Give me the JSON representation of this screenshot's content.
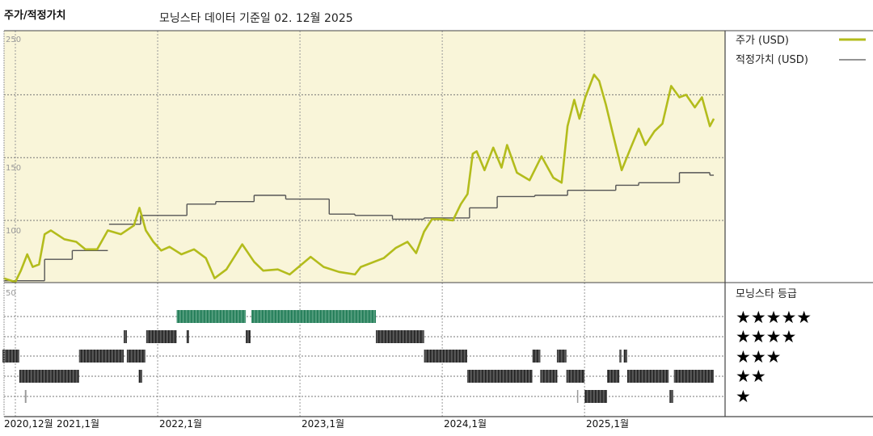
{
  "header": {
    "title": "주가/적정가치",
    "subtitle": "모닝스타 데이터 기준일 02. 12월 2025"
  },
  "legend": {
    "price_label": "주가 (USD)",
    "fair_value_label": "적정가치 (USD)",
    "rating_title": "모닝스타 등급",
    "stars": [
      "★★★★★",
      "★★★★",
      "★★★",
      "★★",
      "★"
    ]
  },
  "colors": {
    "price": "#b3bc1c",
    "fair_value": "#555555",
    "plot_bg": "#f9f5d9",
    "rating_5": "#2f8a66",
    "rating_other": "#333333"
  },
  "chart_data": [
    {
      "type": "line",
      "ylim": [
        50,
        250
      ],
      "yticks": [
        "250",
        "150",
        "100",
        "50"
      ],
      "grid": true,
      "legend": "right",
      "xticks": [
        "2020,12월",
        "2021,1월",
        "2022,1월",
        "2023,1월",
        "2024,1월",
        "2025,1월"
      ],
      "series": [
        {
          "name": "주가 (USD)",
          "points": [
            [
              "2020-12-01",
              54
            ],
            [
              "2021-01-01",
              51
            ],
            [
              "2021-01-15",
              60
            ],
            [
              "2021-02-01",
              73
            ],
            [
              "2021-02-15",
              63
            ],
            [
              "2021-03-01",
              65
            ],
            [
              "2021-03-15",
              89
            ],
            [
              "2021-04-01",
              92
            ],
            [
              "2021-05-05",
              85
            ],
            [
              "2021-06-05",
              83
            ],
            [
              "2021-06-28",
              77
            ],
            [
              "2021-07-28",
              77
            ],
            [
              "2021-08-25",
              92
            ],
            [
              "2021-09-28",
              89
            ],
            [
              "2021-11-01",
              96
            ],
            [
              "2021-11-15",
              110
            ],
            [
              "2021-12-01",
              92
            ],
            [
              "2021-12-20",
              83
            ],
            [
              "2022-01-10",
              76
            ],
            [
              "2022-02-01",
              79
            ],
            [
              "2022-03-01",
              73
            ],
            [
              "2022-04-03",
              77
            ],
            [
              "2022-05-03",
              70
            ],
            [
              "2022-05-25",
              54
            ],
            [
              "2022-06-25",
              61
            ],
            [
              "2022-08-05",
              81
            ],
            [
              "2022-09-05",
              67
            ],
            [
              "2022-09-28",
              60
            ],
            [
              "2022-11-05",
              61
            ],
            [
              "2022-12-05",
              57
            ],
            [
              "2023-01-28",
              71
            ],
            [
              "2023-03-01",
              63
            ],
            [
              "2023-04-10",
              59
            ],
            [
              "2023-05-20",
              57
            ],
            [
              "2023-06-05",
              63
            ],
            [
              "2023-08-03",
              70
            ],
            [
              "2023-09-03",
              78
            ],
            [
              "2023-10-03",
              83
            ],
            [
              "2023-10-25",
              74
            ],
            [
              "2023-11-15",
              91
            ],
            [
              "2023-12-05",
              101
            ],
            [
              "2023-12-28",
              101
            ],
            [
              "2024-01-28",
              100
            ],
            [
              "2024-02-18",
              113
            ],
            [
              "2024-03-05",
              121
            ],
            [
              "2024-03-18",
              153
            ],
            [
              "2024-03-28",
              155
            ],
            [
              "2024-04-18",
              140
            ],
            [
              "2024-05-10",
              158
            ],
            [
              "2024-06-01",
              142
            ],
            [
              "2024-06-15",
              160
            ],
            [
              "2024-07-10",
              138
            ],
            [
              "2024-08-12",
              132
            ],
            [
              "2024-09-12",
              151
            ],
            [
              "2024-10-12",
              134
            ],
            [
              "2024-11-03",
              130
            ],
            [
              "2024-11-18",
              175
            ],
            [
              "2024-12-05",
              196
            ],
            [
              "2024-12-18",
              181
            ],
            [
              "2025-01-03",
              198
            ],
            [
              "2025-01-25",
              216
            ],
            [
              "2025-02-08",
              211
            ],
            [
              "2025-02-25",
              192
            ],
            [
              "2025-03-15",
              166
            ],
            [
              "2025-04-05",
              140
            ],
            [
              "2025-04-28",
              158
            ],
            [
              "2025-05-18",
              173
            ],
            [
              "2025-06-05",
              160
            ],
            [
              "2025-06-28",
              171
            ],
            [
              "2025-07-18",
              177
            ],
            [
              "2025-08-10",
              207
            ],
            [
              "2025-09-01",
              198
            ],
            [
              "2025-09-18",
              200
            ],
            [
              "2025-10-10",
              190
            ],
            [
              "2025-10-28",
              198
            ],
            [
              "2025-11-18",
              175
            ],
            [
              "2025-11-28",
              181
            ]
          ]
        },
        {
          "name": "적정가치 (USD)",
          "steps": [
            [
              "2020-12-01",
              52
            ],
            [
              "2021-03-15",
              69
            ],
            [
              "2021-05-25",
              76
            ],
            [
              "2021-08-25",
              null
            ],
            [
              "2021-08-28",
              97
            ],
            [
              "2021-11-18",
              104
            ],
            [
              "2022-03-15",
              113
            ],
            [
              "2022-05-28",
              115
            ],
            [
              "2022-09-05",
              120
            ],
            [
              "2022-11-25",
              117
            ],
            [
              "2023-03-15",
              105
            ],
            [
              "2023-05-20",
              104
            ],
            [
              "2023-08-25",
              101
            ],
            [
              "2023-11-15",
              102
            ],
            [
              "2024-03-10",
              110
            ],
            [
              "2024-05-20",
              119
            ],
            [
              "2024-08-25",
              120
            ],
            [
              "2024-11-18",
              124
            ],
            [
              "2025-03-20",
              128
            ],
            [
              "2025-05-18",
              130
            ],
            [
              "2025-09-01",
              138
            ],
            [
              "2025-11-18",
              136
            ],
            [
              "2025-11-28",
              136
            ]
          ]
        }
      ]
    },
    {
      "type": "bar",
      "title": "모닝스타 등급",
      "ratings": [
        {
          "stars": 5,
          "ranges": [
            [
              "2022-02-19",
              "2022-08-14"
            ],
            [
              "2022-08-28",
              "2023-07-13"
            ]
          ]
        },
        {
          "stars": 4,
          "ranges": [
            [
              "2021-10-05",
              "2021-10-13"
            ],
            [
              "2021-12-02",
              "2022-02-19"
            ],
            [
              "2022-03-14",
              "2022-03-20"
            ],
            [
              "2022-08-14",
              "2022-08-26"
            ],
            [
              "2023-07-13",
              "2023-11-15"
            ]
          ]
        },
        {
          "stars": 3,
          "ranges": [
            [
              "2020-11-28",
              "2021-01-11"
            ],
            [
              "2021-06-12",
              "2021-10-05"
            ],
            [
              "2021-10-13",
              "2021-11-30"
            ],
            [
              "2023-11-15",
              "2024-03-04"
            ],
            [
              "2024-08-19",
              "2024-09-09"
            ],
            [
              "2024-10-21",
              "2024-11-15"
            ],
            [
              "2025-03-29",
              "2025-04-04"
            ],
            [
              "2025-04-10",
              "2025-04-19"
            ]
          ]
        },
        {
          "stars": 2,
          "ranges": [
            [
              "2021-01-11",
              "2021-06-12"
            ],
            [
              "2021-11-13",
              "2021-11-22"
            ],
            [
              "2024-03-04",
              "2024-08-19"
            ],
            [
              "2024-09-09",
              "2024-10-22"
            ],
            [
              "2024-11-15",
              "2025-01-01"
            ],
            [
              "2025-02-28",
              "2025-03-29"
            ],
            [
              "2025-04-19",
              "2025-08-04"
            ],
            [
              "2025-08-17",
              "2025-11-28"
            ]
          ]
        },
        {
          "stars": 1,
          "ranges": [
            [
              "2021-01-25",
              "2021-01-29"
            ],
            [
              "2024-12-12",
              "2024-12-14"
            ],
            [
              "2025-01-01",
              "2025-02-28"
            ],
            [
              "2025-08-06",
              "2025-08-15"
            ]
          ]
        }
      ]
    }
  ]
}
